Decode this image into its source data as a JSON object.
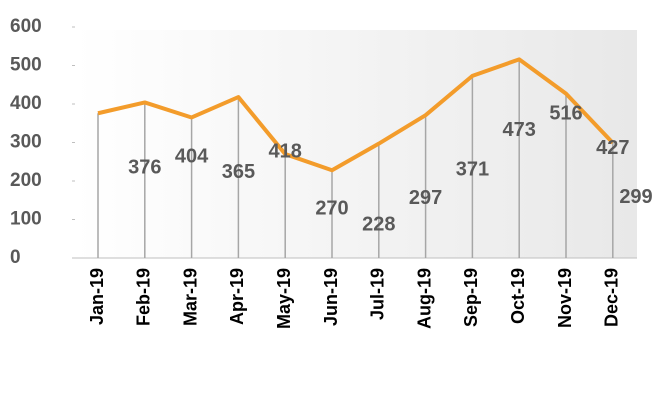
{
  "chart_data": {
    "type": "line",
    "categories": [
      "Jan-19",
      "Feb-19",
      "Mar-19",
      "Apr-19",
      "May-19",
      "Jun-19",
      "Jul-19",
      "Aug-19",
      "Sep-19",
      "Oct-19",
      "Nov-19",
      "Dec-19"
    ],
    "series": [
      {
        "color": "#f39c2b",
        "values": [
          376,
          404,
          365,
          418,
          270,
          228,
          297,
          371,
          473,
          516,
          427,
          299
        ]
      }
    ],
    "ylim": [
      0,
      600
    ],
    "yticks": [
      0,
      100,
      200,
      300,
      400,
      500,
      600
    ]
  }
}
